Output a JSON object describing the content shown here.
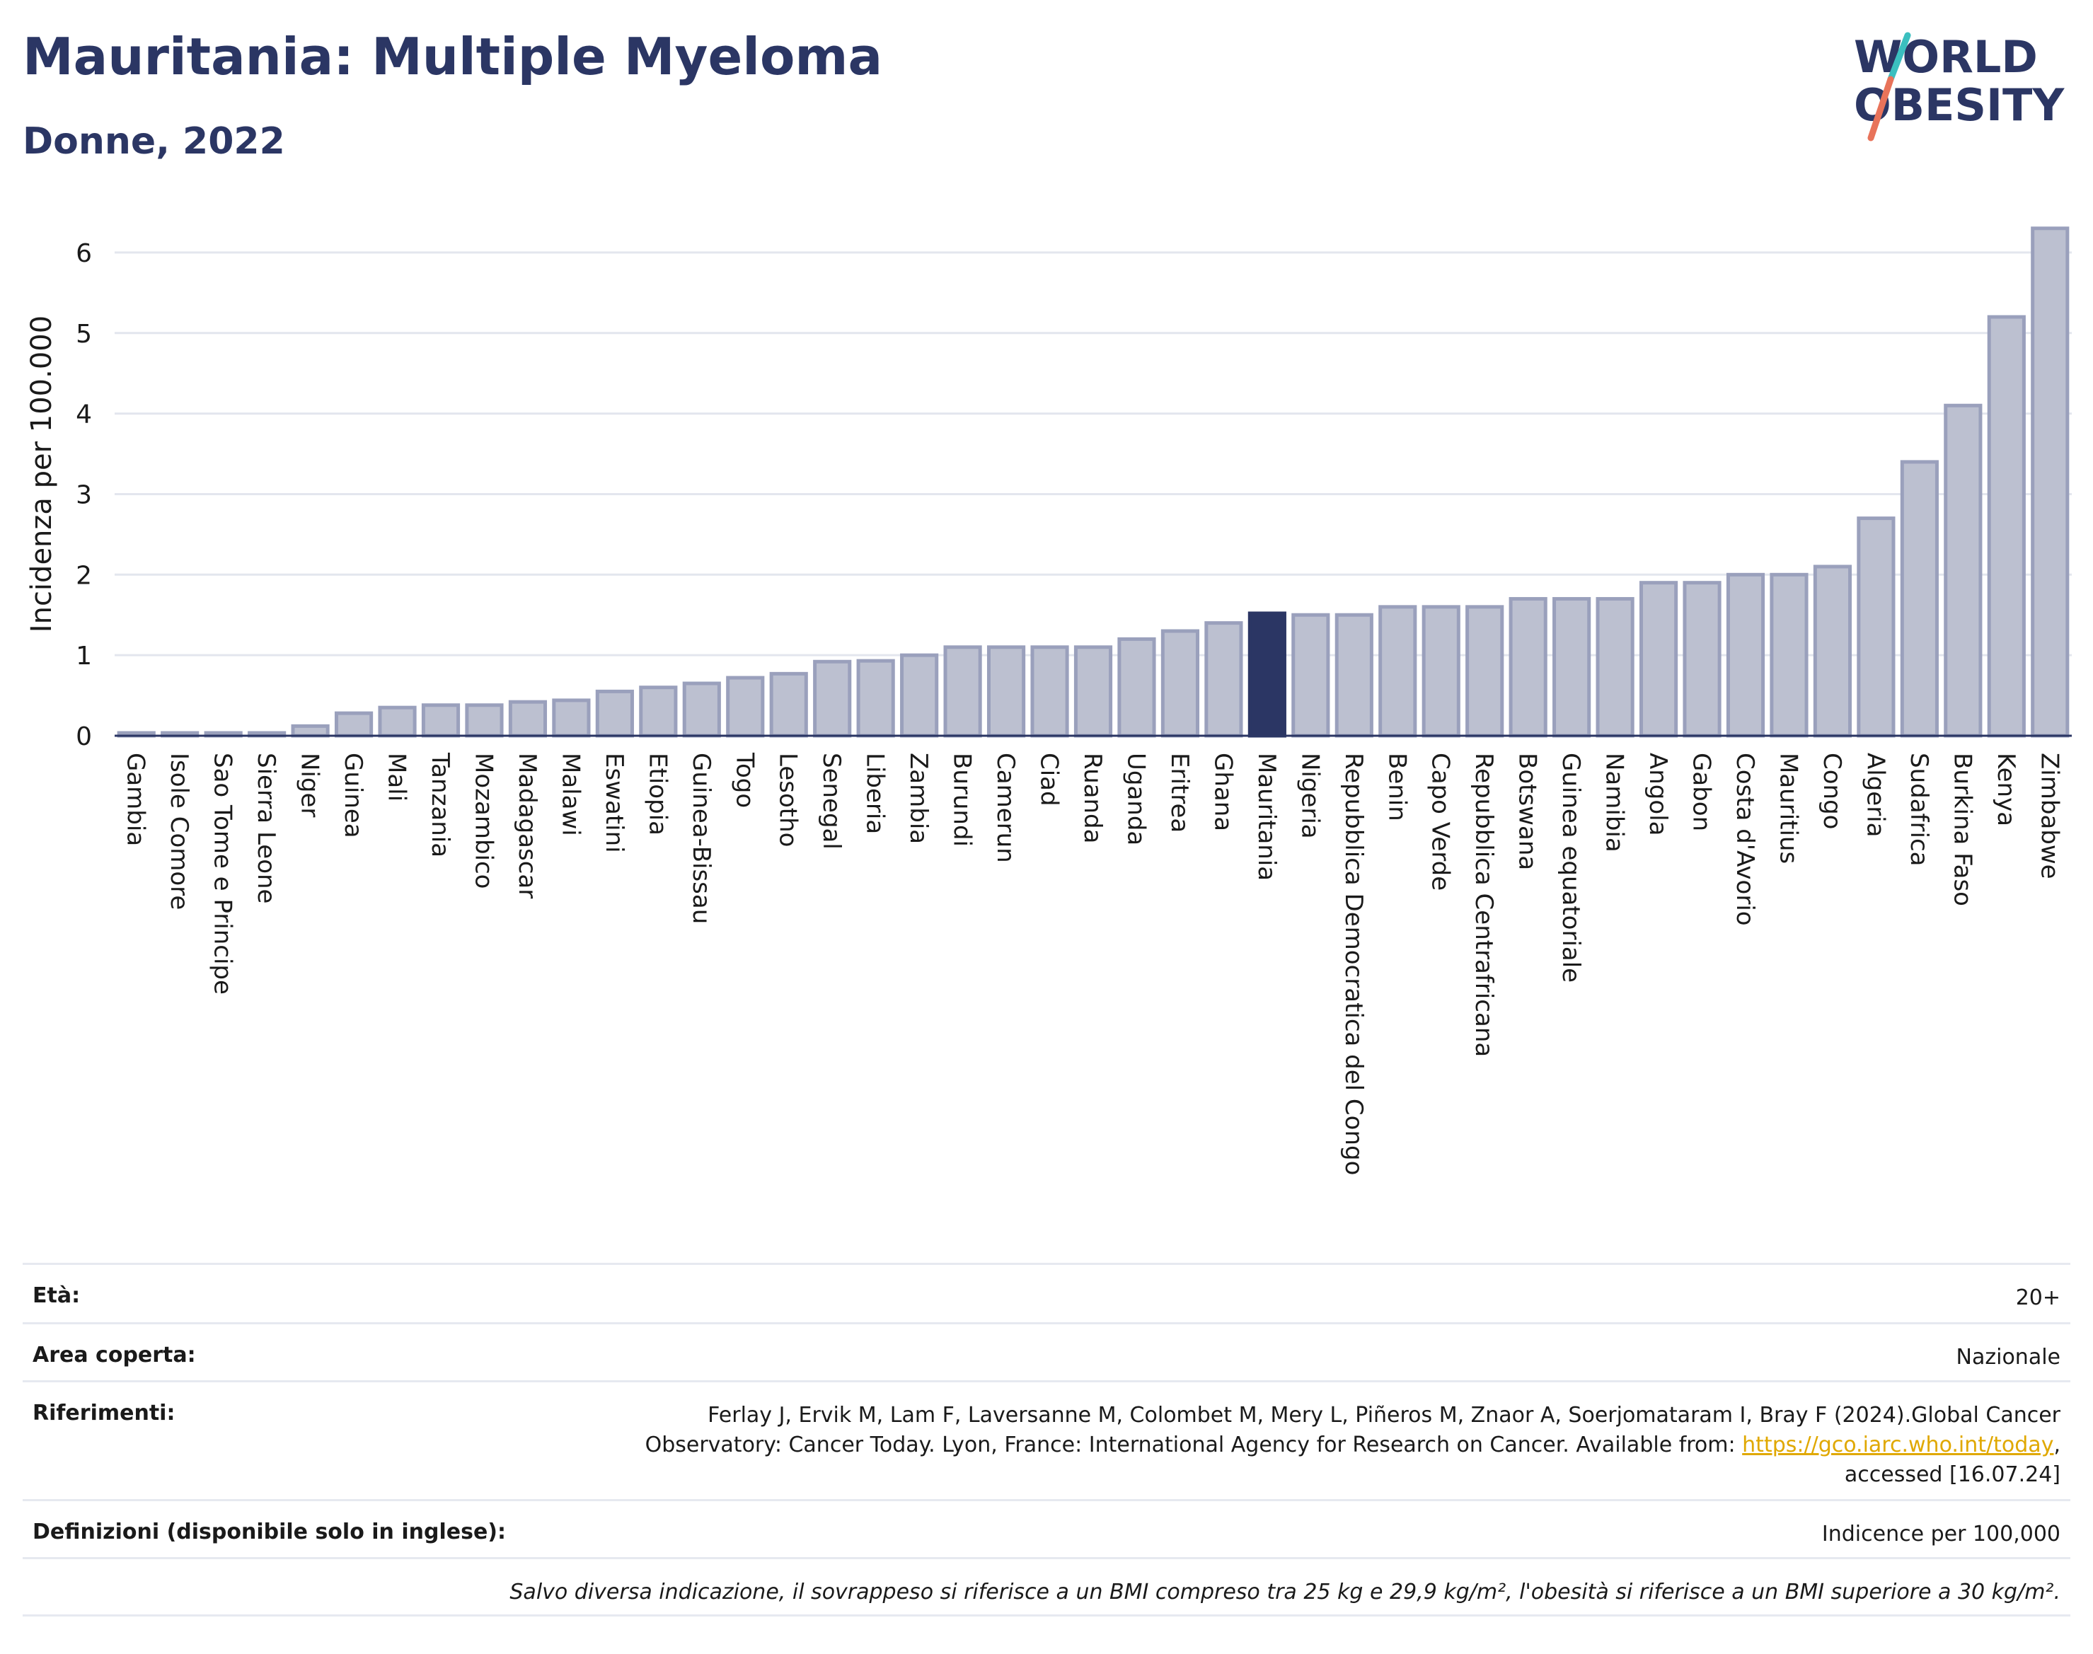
{
  "header": {
    "title": "Mauritania: Multiple Myeloma",
    "subtitle": "Donne, 2022"
  },
  "logo": {
    "line1": "WORLD",
    "line2": "OBESITY",
    "colors": [
      "#2b3664",
      "#3bbfbf",
      "#e8735a"
    ]
  },
  "colors": {
    "bar": "#bcc0d0",
    "bar_stroke": "#9aa0bc",
    "highlight": "#2b3664",
    "grid": "#e3e6ee",
    "axis": "#2b3664"
  },
  "chart_data": {
    "type": "bar",
    "title": "Mauritania: Multiple Myeloma",
    "subtitle": "Donne, 2022",
    "xlabel": "",
    "ylabel": "Incidenza per 100.000",
    "ylim": [
      0,
      6.5
    ],
    "yticks": [
      0,
      1,
      2,
      3,
      4,
      5,
      6
    ],
    "highlight": "Mauritania",
    "grid": true,
    "categories": [
      "Gambia",
      "Isole Comore",
      "Sao Tome e Principe",
      "Sierra Leone",
      "Niger",
      "Guinea",
      "Mali",
      "Tanzania",
      "Mozambico",
      "Madagascar",
      "Malawi",
      "Eswatini",
      "Etiopia",
      "Guinea-Bissau",
      "Togo",
      "Lesotho",
      "Senegal",
      "Liberia",
      "Zambia",
      "Burundi",
      "Camerun",
      "Ciad",
      "Ruanda",
      "Uganda",
      "Eritrea",
      "Ghana",
      "Mauritania",
      "Nigeria",
      "Repubblica Democratica del Congo",
      "Benin",
      "Capo Verde",
      "Repubblica Centrafricana",
      "Botswana",
      "Guinea equatoriale",
      "Namibia",
      "Angola",
      "Gabon",
      "Costa d'Avorio",
      "Mauritius",
      "Congo",
      "Algeria",
      "Sudafrica",
      "Burkina Faso",
      "Kenya",
      "Zimbabwe"
    ],
    "values": [
      0.02,
      0.02,
      0.02,
      0.02,
      0.12,
      0.28,
      0.35,
      0.38,
      0.38,
      0.42,
      0.44,
      0.55,
      0.6,
      0.65,
      0.72,
      0.77,
      0.92,
      0.93,
      1.0,
      1.1,
      1.1,
      1.1,
      1.1,
      1.2,
      1.3,
      1.4,
      1.52,
      1.5,
      1.5,
      1.6,
      1.6,
      1.6,
      1.7,
      1.7,
      1.7,
      1.9,
      1.9,
      2.0,
      2.0,
      2.1,
      2.7,
      3.4,
      4.1,
      5.2,
      6.3
    ]
  },
  "info": {
    "age_label": "Età:",
    "age_value": "20+",
    "area_label": "Area coperta:",
    "area_value": "Nazionale",
    "refs_label": "Riferimenti:",
    "refs_line1": "Ferlay J, Ervik M, Lam F, Laversanne M, Colombet M, Mery L, Piñeros M, Znaor A, Soerjomataram I, Bray F (2024).Global Cancer",
    "refs_line2": "Observatory: Cancer Today. Lyon, France: International Agency for Research on Cancer. Available from:",
    "refs_link": "https://gco.iarc.who.int/today",
    "refs_comma": ",",
    "refs_line3": "accessed [16.07.24]",
    "defs_label": "Definizioni (disponibile solo in inglese):",
    "defs_value": "Indicence per 100,000",
    "note": "Salvo diversa indicazione, il sovrappeso si riferisce a un BMI compreso tra 25 kg e 29,9 kg/m², l'obesità si riferisce a un BMI superiore a 30 kg/m²."
  }
}
